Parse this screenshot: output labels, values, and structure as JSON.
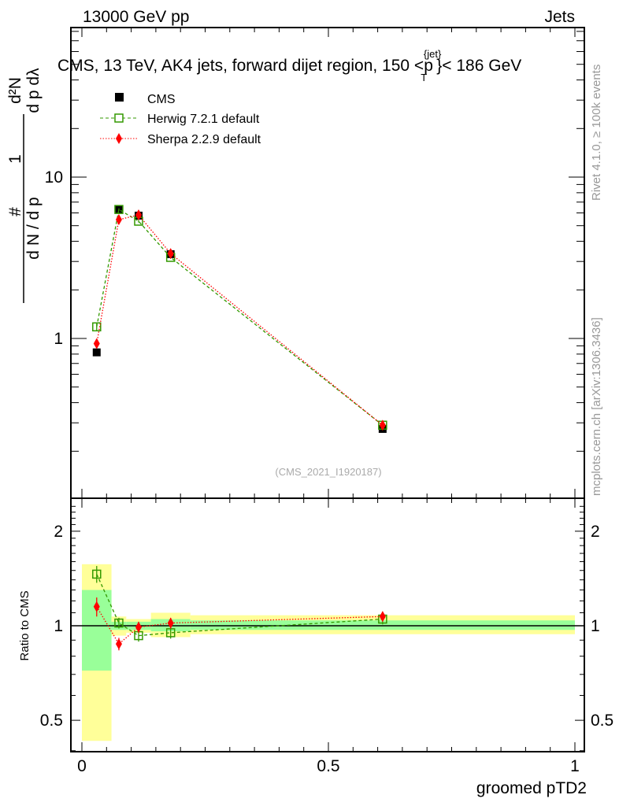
{
  "header": {
    "left": "13000 GeV pp",
    "right": "Jets"
  },
  "side_texts": {
    "rivet": "Rivet 4.1.0, ≥ 100k events",
    "mcplots": "mcplots.cern.ch [arXiv:1306.3436]"
  },
  "analysis_id": "(CMS_2021_I1920187)",
  "chart_data": [
    {
      "type": "scatter",
      "title": "CMS, 13 TeV, AK4 jets, forward dijet region, 150 <p_T^{jet}> < 186 GeV",
      "title_main": "CMS, 13 TeV, AK4 jets, forward dijet region, 150 <p",
      "title_sup": "{jet}",
      "title_sub": "T",
      "title_end": "}< 186 GeV",
      "ylabel": "1/(dN/dp_T) d²N/(dp_T dλ)",
      "ylabel_parts": {
        "num1": "1",
        "den1": "d N / d p",
        "num2": "d²N",
        "den2": "d p  dλ",
        "sub": "T",
        "hash": "#"
      },
      "yscale": "log",
      "ylim": [
        0.13,
        60
      ],
      "yticklabels": [
        {
          "v": 1,
          "t": "1"
        },
        {
          "v": 10,
          "t": "10"
        }
      ],
      "xlim": [
        -0.02,
        1.02
      ],
      "legend_position": "top-left",
      "x": [
        0.03,
        0.075,
        0.115,
        0.18,
        0.61
      ],
      "series": [
        {
          "name": "CMS",
          "color": "#000000",
          "marker": "square-filled",
          "values": [
            0.82,
            6.3,
            5.77,
            3.33,
            0.275
          ]
        },
        {
          "name": "Herwig 7.2.1 default",
          "color": "#339900",
          "marker": "square-open",
          "line": "dashed",
          "values": [
            1.18,
            6.3,
            5.33,
            3.18,
            0.29
          ],
          "errors": [
            0.07,
            0.1,
            0.1,
            0.06,
            0.01
          ]
        },
        {
          "name": "Sherpa 2.2.9 default",
          "color": "#ff0000",
          "marker": "diamond",
          "line": "dotted",
          "values": [
            0.93,
            5.45,
            5.83,
            3.36,
            0.29
          ],
          "errors": [
            0.05,
            0.1,
            0.1,
            0.06,
            0.01
          ]
        }
      ]
    },
    {
      "type": "scatter",
      "ylabel": "Ratio to CMS",
      "xlabel": "groomed pTD2",
      "yscale": "log",
      "ylim": [
        0.37,
        2.5
      ],
      "yticklabels": [
        {
          "v": 0.5,
          "t": "0.5"
        },
        {
          "v": 1,
          "t": "1"
        },
        {
          "v": 2,
          "t": "2"
        }
      ],
      "xticklabels": [
        {
          "v": 0,
          "t": "0"
        },
        {
          "v": 0.5,
          "t": "0.5"
        },
        {
          "v": 1,
          "t": "1"
        }
      ],
      "bin_edges": [
        0,
        0.06,
        0.09,
        0.14,
        0.22,
        1
      ],
      "band_total": [
        [
          0.43,
          1.57
        ],
        [
          0.93,
          1.07
        ],
        [
          0.95,
          1.05
        ],
        [
          0.92,
          1.1
        ],
        [
          0.94,
          1.08
        ]
      ],
      "band_stat": [
        [
          0.72,
          1.3
        ],
        [
          0.97,
          1.03
        ],
        [
          0.97,
          1.03
        ],
        [
          0.96,
          1.05
        ],
        [
          0.97,
          1.04
        ]
      ],
      "x": [
        0.03,
        0.075,
        0.115,
        0.18,
        0.61
      ],
      "series": [
        {
          "name": "Herwig 7.2.1 default",
          "color": "#339900",
          "values": [
            1.46,
            1.02,
            0.93,
            0.95,
            1.05
          ],
          "errors": [
            0.09,
            0.04,
            0.04,
            0.04,
            0.04
          ]
        },
        {
          "name": "Sherpa 2.2.9 default",
          "color": "#ff0000",
          "values": [
            1.15,
            0.875,
            0.99,
            1.02,
            1.07
          ],
          "errors": [
            0.08,
            0.04,
            0.04,
            0.04,
            0.04
          ]
        }
      ],
      "colors": {
        "band_total": "#ffff99",
        "band_stat": "#99ff99"
      }
    }
  ]
}
